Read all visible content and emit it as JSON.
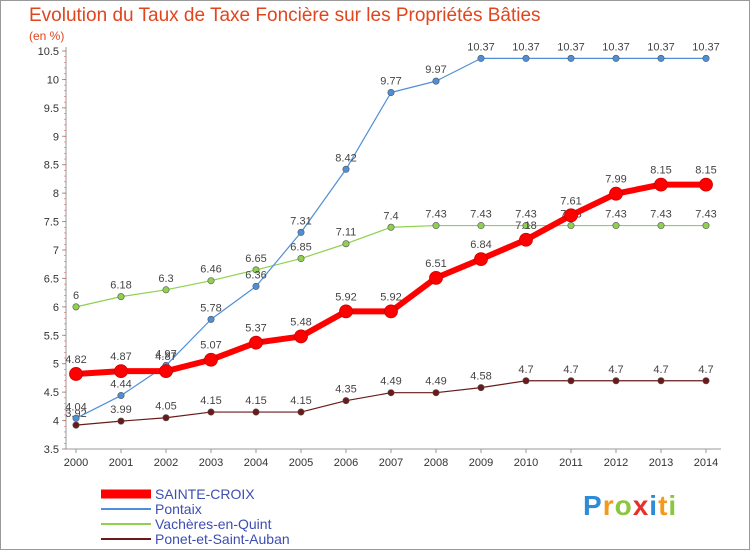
{
  "chart_data": {
    "type": "line",
    "title": "Evolution du Taux de Taxe Foncière sur les Propriétés Bâties",
    "subtitle": "(en %)",
    "x": [
      "2000",
      "2001",
      "2002",
      "2003",
      "2004",
      "2005",
      "2006",
      "2007",
      "2008",
      "2009",
      "2010",
      "2011",
      "2012",
      "2013",
      "2014"
    ],
    "ylim": [
      3.5,
      10.5
    ],
    "yticks": [
      "3.5",
      "4",
      "4.5",
      "5",
      "5.5",
      "6",
      "6.5",
      "7",
      "7.5",
      "8",
      "8.5",
      "9",
      "9.5",
      "10",
      "10.5"
    ],
    "grid": false,
    "legend_position": "bottom-left",
    "series": [
      {
        "name": "Ponet-et-Saint-Auban",
        "color": "#6b1a1a",
        "values": [
          3.92,
          3.99,
          4.05,
          4.15,
          4.15,
          4.15,
          4.35,
          4.49,
          4.49,
          4.58,
          4.7,
          4.7,
          4.7,
          4.7,
          4.7
        ],
        "labels": [
          "3.92",
          "3.99",
          "4.05",
          "4.15",
          "4.15",
          "4.15",
          "4.35",
          "4.49",
          "4.49",
          "4.58",
          "4.7",
          "4.7",
          "4.7",
          "4.7",
          "4.7"
        ]
      },
      {
        "name": "Vachères-en-Quint",
        "color": "#8fd14f",
        "values": [
          6,
          6.18,
          6.3,
          6.46,
          6.65,
          6.85,
          7.11,
          7.4,
          7.43,
          7.43,
          7.43,
          7.43,
          7.43,
          7.43,
          7.43
        ],
        "labels": [
          "6",
          "6.18",
          "6.3",
          "6.46",
          "6.65",
          "6.85",
          "7.11",
          "7.4",
          "7.43",
          "7.43",
          "7.43",
          "7.43",
          "7.43",
          "7.43",
          "7.43"
        ]
      },
      {
        "name": "Pontaix",
        "color": "#4f8fd8",
        "values": [
          4.04,
          4.44,
          4.97,
          5.78,
          6.36,
          7.31,
          8.42,
          9.77,
          9.97,
          10.37,
          10.37,
          10.37,
          10.37,
          10.37,
          10.37
        ],
        "labels": [
          "4.04",
          "4.44",
          "4.97",
          "5.78",
          "6.36",
          "7.31",
          "8.42",
          "9.77",
          "9.97",
          "10.37",
          "10.37",
          "10.37",
          "10.37",
          "10.37",
          "10.37"
        ]
      },
      {
        "name": "SAINTE-CROIX",
        "color": "#ff0000",
        "values": [
          4.82,
          4.87,
          4.87,
          5.07,
          5.37,
          5.48,
          5.92,
          5.92,
          6.51,
          6.84,
          7.18,
          7.61,
          7.99,
          8.15,
          8.15
        ],
        "labels": [
          "4.82",
          "4.87",
          "4.87",
          "5.07",
          "5.37",
          "5.48",
          "5.92",
          "5.92",
          "6.51",
          "6.84",
          "7.18",
          "7.61",
          "7.99",
          "8.15",
          "8.15"
        ]
      }
    ],
    "legend": [
      "SAINTE-CROIX",
      "Pontaix",
      "Vachères-en-Quint",
      "Ponet-et-Saint-Auban"
    ]
  },
  "logo": {
    "letters": [
      "P",
      "r",
      "o",
      "x",
      "i",
      "t",
      "i"
    ],
    "colors": [
      "#2e8bd8",
      "#f29a1e",
      "#8cc63f",
      "#e8302a",
      "#2e8bd8",
      "#f29a1e",
      "#8cc63f"
    ]
  }
}
